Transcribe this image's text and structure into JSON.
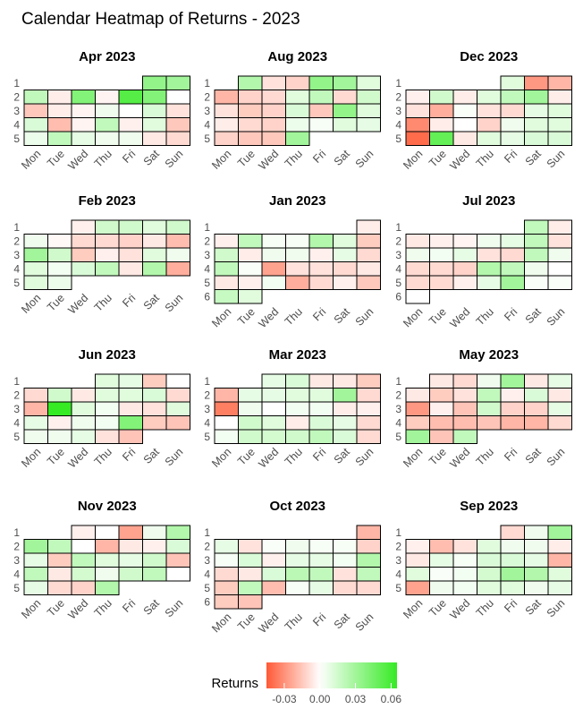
{
  "chart_data": {
    "type": "heatmap",
    "title": "Calendar Heatmap of Returns - 2023",
    "weekdays": [
      "Mon",
      "Tue",
      "Wed",
      "Thu",
      "Fri",
      "Sat",
      "Sun"
    ],
    "color_scale": {
      "low": "#ff5a36",
      "mid": "#ffffff",
      "high": "#36ea24",
      "min": -0.045,
      "max": 0.065
    },
    "legend": {
      "title": "Returns",
      "placement": "bottom",
      "ticks": [
        -0.03,
        0.0,
        0.03,
        0.06
      ],
      "tick_labels": [
        "-0.03",
        "0.00",
        "0.03",
        "0.06"
      ]
    },
    "panels": [
      {
        "title": "Apr 2023",
        "weeks": 5,
        "rows": [
          [
            null,
            null,
            null,
            null,
            null,
            0.035,
            0.03
          ],
          [
            0.02,
            -0.005,
            0.04,
            -0.003,
            0.055,
            0.04,
            0.0
          ],
          [
            -0.015,
            -0.005,
            -0.003,
            0.005,
            0.0,
            0.012,
            -0.008
          ],
          [
            0.012,
            -0.018,
            -0.003,
            0.02,
            -0.004,
            0.01,
            -0.015
          ],
          [
            0.006,
            0.02,
            0.008,
            0.005,
            0.005,
            -0.006,
            -0.01
          ]
        ]
      },
      {
        "title": "Aug 2023",
        "weeks": 5,
        "rows": [
          [
            null,
            0.025,
            -0.008,
            -0.012,
            0.035,
            0.03,
            0.01
          ],
          [
            -0.02,
            -0.012,
            -0.01,
            0.01,
            0.02,
            -0.01,
            0.015
          ],
          [
            -0.008,
            -0.014,
            -0.012,
            0.012,
            -0.015,
            0.035,
            0.01
          ],
          [
            -0.005,
            -0.01,
            -0.012,
            0.006,
            0.003,
            0.01,
            0.008
          ],
          [
            -0.012,
            -0.015,
            -0.015,
            0.03,
            null,
            null,
            null
          ]
        ]
      },
      {
        "title": "Dec 2023",
        "weeks": 5,
        "rows": [
          [
            null,
            null,
            null,
            null,
            0.01,
            -0.028,
            -0.02
          ],
          [
            -0.004,
            0.015,
            -0.005,
            0.01,
            0.02,
            0.03,
            -0.005
          ],
          [
            -0.008,
            -0.022,
            0.002,
            -0.008,
            -0.01,
            0.008,
            0.01
          ],
          [
            -0.032,
            -0.005,
            0.0,
            -0.012,
            0.005,
            0.01,
            0.01
          ],
          [
            -0.04,
            0.05,
            -0.006,
            0.01,
            0.008,
            0.012,
            0.012
          ]
        ]
      },
      {
        "title": "Feb 2023",
        "weeks": 5,
        "rows": [
          [
            null,
            null,
            -0.004,
            0.015,
            0.015,
            0.01,
            0.015
          ],
          [
            0.005,
            -0.002,
            -0.01,
            -0.01,
            -0.012,
            -0.006,
            -0.018
          ],
          [
            0.03,
            0.015,
            -0.014,
            -0.004,
            -0.008,
            0.01,
            0.005
          ],
          [
            0.01,
            0.004,
            0.012,
            0.02,
            -0.006,
            0.025,
            -0.022
          ],
          [
            0.01,
            0.006,
            null,
            null,
            null,
            null,
            null
          ]
        ]
      },
      {
        "title": "Jan 2023",
        "weeks": 6,
        "rows": [
          [
            null,
            null,
            null,
            null,
            null,
            null,
            -0.005
          ],
          [
            -0.004,
            0.02,
            0.003,
            0.003,
            0.025,
            0.01,
            -0.014
          ],
          [
            0.015,
            -0.005,
            0.005,
            0.005,
            -0.004,
            0.008,
            -0.01
          ],
          [
            0.02,
            0.002,
            -0.025,
            -0.008,
            -0.008,
            -0.01,
            -0.006
          ],
          [
            -0.006,
            -0.004,
            0.004,
            -0.022,
            -0.01,
            -0.004,
            -0.015
          ],
          [
            0.018,
            0.01,
            null,
            null,
            null,
            null,
            null
          ]
        ]
      },
      {
        "title": "Jul 2023",
        "weeks": 6,
        "rows": [
          [
            null,
            null,
            null,
            null,
            null,
            0.02,
            -0.005
          ],
          [
            -0.006,
            -0.004,
            -0.003,
            0.005,
            0.008,
            0.02,
            -0.008
          ],
          [
            0.005,
            0.004,
            0.008,
            -0.008,
            -0.01,
            0.02,
            0.005
          ],
          [
            -0.01,
            -0.01,
            -0.012,
            0.025,
            0.02,
            0.005,
            0.0
          ],
          [
            -0.01,
            -0.01,
            -0.004,
            0.008,
            0.03,
            0.002,
            0.002
          ],
          [
            0.0,
            null,
            null,
            null,
            null,
            null,
            null
          ]
        ]
      },
      {
        "title": "Jun 2023",
        "weeks": 5,
        "rows": [
          [
            null,
            null,
            null,
            0.01,
            0.008,
            -0.014,
            0.0
          ],
          [
            -0.01,
            0.015,
            -0.006,
            0.01,
            0.01,
            0.012,
            -0.01
          ],
          [
            -0.02,
            0.07,
            0.01,
            0.004,
            -0.006,
            -0.008,
            0.01
          ],
          [
            0.008,
            -0.004,
            0.005,
            0.004,
            0.04,
            -0.014,
            -0.016
          ],
          [
            0.005,
            0.005,
            0.008,
            -0.008,
            -0.016,
            null,
            null
          ]
        ]
      },
      {
        "title": "Mar 2023",
        "weeks": 5,
        "rows": [
          [
            null,
            null,
            0.008,
            0.012,
            -0.006,
            -0.006,
            -0.014
          ],
          [
            -0.02,
            0.008,
            0.008,
            0.01,
            0.01,
            0.03,
            -0.01
          ],
          [
            -0.035,
            0.005,
            0.0,
            0.004,
            0.004,
            -0.005,
            -0.004
          ],
          [
            0.0,
            0.015,
            0.01,
            -0.005,
            0.012,
            0.008,
            -0.01
          ],
          [
            0.004,
            0.015,
            0.014,
            0.015,
            0.02,
            0.012,
            -0.01
          ]
        ]
      },
      {
        "title": "May 2023",
        "weeks": 5,
        "rows": [
          [
            null,
            -0.006,
            -0.01,
            0.005,
            0.03,
            -0.006,
            0.008
          ],
          [
            -0.006,
            -0.014,
            -0.008,
            0.02,
            -0.004,
            0.012,
            -0.006
          ],
          [
            -0.028,
            -0.004,
            -0.016,
            0.015,
            -0.012,
            -0.012,
            0.008
          ],
          [
            -0.014,
            -0.018,
            -0.018,
            -0.016,
            -0.02,
            -0.02,
            -0.01
          ],
          [
            0.03,
            -0.016,
            0.02,
            null,
            null,
            null,
            null
          ]
        ]
      },
      {
        "title": "Nov 2023",
        "weeks": 5,
        "rows": [
          [
            null,
            null,
            -0.004,
            0.0,
            -0.025,
            0.005,
            0.025
          ],
          [
            0.03,
            0.02,
            0.0,
            -0.02,
            -0.006,
            -0.004,
            0.012
          ],
          [
            0.008,
            -0.014,
            0.02,
            0.01,
            0.008,
            0.015,
            -0.016
          ],
          [
            0.02,
            -0.006,
            0.014,
            0.005,
            0.015,
            0.02,
            0.0
          ],
          [
            0.008,
            -0.01,
            -0.012,
            0.025,
            null,
            null,
            null
          ]
        ]
      },
      {
        "title": "Oct 2023",
        "weeks": 6,
        "rows": [
          [
            null,
            null,
            null,
            null,
            null,
            null,
            -0.02
          ],
          [
            0.008,
            -0.008,
            0.002,
            0.005,
            0.003,
            0.003,
            -0.012
          ],
          [
            0.003,
            0.012,
            -0.004,
            0.008,
            0.008,
            0.004,
            0.025
          ],
          [
            -0.01,
            -0.006,
            0.012,
            0.022,
            0.02,
            -0.008,
            0.02
          ],
          [
            -0.014,
            0.02,
            -0.018,
            0.003,
            0.008,
            -0.01,
            -0.01
          ],
          [
            -0.014,
            -0.016,
            null,
            null,
            null,
            null,
            null
          ]
        ]
      },
      {
        "title": "Sep 2023",
        "weeks": 5,
        "rows": [
          [
            null,
            null,
            null,
            null,
            -0.01,
            0.005,
            0.03
          ],
          [
            -0.004,
            -0.018,
            -0.008,
            0.01,
            0.005,
            0.005,
            -0.005
          ],
          [
            -0.006,
            0.008,
            0.003,
            0.012,
            0.012,
            0.008,
            -0.02
          ],
          [
            0.01,
            0.002,
            0.004,
            0.014,
            0.03,
            0.025,
            0.01
          ],
          [
            -0.025,
            0.005,
            0.004,
            0.01,
            0.01,
            0.005,
            0.008
          ]
        ]
      }
    ]
  }
}
